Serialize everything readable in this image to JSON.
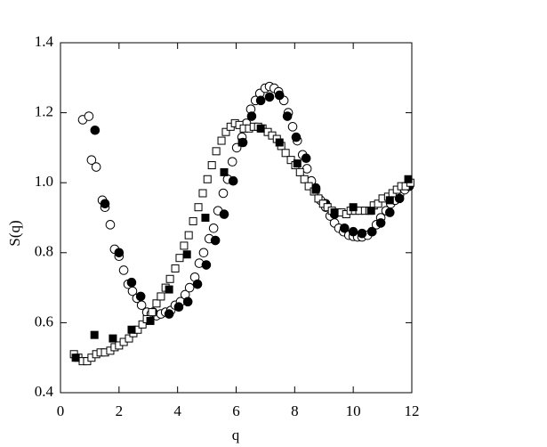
{
  "chart_data": {
    "type": "scatter",
    "x_label": "q",
    "y_label": "S(q)",
    "xlim": [
      0,
      12
    ],
    "ylim": [
      0.4,
      1.4
    ],
    "xticks": [
      0,
      2,
      4,
      6,
      8,
      10,
      12
    ],
    "yticks": [
      0.4,
      0.6,
      0.8,
      {
        "value": 1,
        "label": "1.0"
      },
      1.2,
      1.4
    ],
    "series": [
      {
        "marker": "circle",
        "color": "#000",
        "filled": false,
        "x": [
          0.76,
          0.97,
          1.06,
          1.22,
          1.43,
          1.52,
          1.7,
          1.85,
          2.0,
          2.16,
          2.31,
          2.46,
          2.61,
          2.77,
          2.95,
          3.1,
          3.28,
          3.43,
          3.59,
          3.77,
          3.92,
          4.1,
          4.26,
          4.41,
          4.59,
          4.74,
          4.89,
          5.08,
          5.23,
          5.38,
          5.56,
          5.71,
          5.87,
          6.02,
          6.2,
          6.35,
          6.5,
          6.66,
          6.81,
          6.99,
          7.14,
          7.3,
          7.45,
          7.63,
          7.78,
          7.93,
          8.09,
          8.27,
          8.42,
          8.57,
          8.72,
          8.88,
          9.06,
          9.21,
          9.36,
          9.51,
          9.67,
          9.85,
          10.0,
          10.15,
          10.3,
          10.49,
          10.64,
          10.79,
          10.94,
          11.12,
          11.28,
          11.43,
          11.58,
          11.76,
          11.91
        ],
        "values": [
          1.18,
          1.19,
          1.065,
          1.045,
          0.95,
          0.93,
          0.88,
          0.81,
          0.79,
          0.75,
          0.71,
          0.69,
          0.67,
          0.65,
          0.63,
          0.625,
          0.62,
          0.625,
          0.63,
          0.635,
          0.65,
          0.66,
          0.68,
          0.7,
          0.73,
          0.77,
          0.8,
          0.84,
          0.87,
          0.92,
          0.97,
          1.01,
          1.06,
          1.1,
          1.13,
          1.17,
          1.21,
          1.235,
          1.255,
          1.27,
          1.275,
          1.27,
          1.26,
          1.235,
          1.2,
          1.16,
          1.12,
          1.08,
          1.04,
          1.005,
          0.98,
          0.95,
          0.93,
          0.905,
          0.885,
          0.87,
          0.86,
          0.85,
          0.847,
          0.845,
          0.845,
          0.85,
          0.86,
          0.88,
          0.9,
          0.92,
          0.94,
          0.95,
          0.965,
          0.98,
          0.99
        ]
      },
      {
        "marker": "circle",
        "color": "#000",
        "filled": true,
        "x": [
          1.18,
          1.52,
          2.0,
          2.43,
          2.74,
          3.16,
          3.71,
          4.04,
          4.35,
          4.68,
          4.98,
          5.29,
          5.59,
          5.9,
          6.23,
          6.53,
          6.84,
          7.14,
          7.48,
          7.75,
          8.05,
          8.39,
          8.72,
          9.06,
          9.36,
          9.7,
          10.0,
          10.3,
          10.64,
          10.94,
          11.25,
          11.58,
          11.91
        ],
        "values": [
          1.15,
          0.94,
          0.8,
          0.715,
          0.675,
          0.63,
          0.625,
          0.645,
          0.66,
          0.71,
          0.765,
          0.835,
          0.91,
          1.005,
          1.115,
          1.19,
          1.235,
          1.245,
          1.25,
          1.19,
          1.13,
          1.07,
          0.985,
          0.94,
          0.91,
          0.87,
          0.86,
          0.855,
          0.86,
          0.885,
          0.915,
          0.955,
          0.99
        ]
      },
      {
        "marker": "square",
        "color": "#000",
        "filled": false,
        "x": [
          0.46,
          0.61,
          0.76,
          0.91,
          1.06,
          1.22,
          1.37,
          1.52,
          1.7,
          1.85,
          2.0,
          2.16,
          2.34,
          2.49,
          2.64,
          2.8,
          2.95,
          3.13,
          3.28,
          3.43,
          3.59,
          3.74,
          3.92,
          4.07,
          4.22,
          4.38,
          4.53,
          4.71,
          4.86,
          5.02,
          5.17,
          5.32,
          5.5,
          5.65,
          5.81,
          5.96,
          6.11,
          6.26,
          6.44,
          6.6,
          6.75,
          6.9,
          7.08,
          7.23,
          7.39,
          7.54,
          7.69,
          7.87,
          8.02,
          8.18,
          8.33,
          8.48,
          8.66,
          8.81,
          8.97,
          9.12,
          9.27,
          9.45,
          9.6,
          9.76,
          9.91,
          10.06,
          10.21,
          10.4,
          10.55,
          10.7,
          10.85,
          11.0,
          11.19,
          11.34,
          11.49,
          11.64,
          11.79,
          11.95
        ],
        "values": [
          0.51,
          0.5,
          0.49,
          0.49,
          0.5,
          0.51,
          0.515,
          0.515,
          0.52,
          0.53,
          0.535,
          0.545,
          0.555,
          0.57,
          0.58,
          0.595,
          0.61,
          0.63,
          0.655,
          0.675,
          0.7,
          0.725,
          0.755,
          0.785,
          0.82,
          0.85,
          0.89,
          0.93,
          0.97,
          1.01,
          1.05,
          1.09,
          1.12,
          1.145,
          1.16,
          1.17,
          1.165,
          1.155,
          1.155,
          1.16,
          1.16,
          1.155,
          1.145,
          1.135,
          1.125,
          1.105,
          1.085,
          1.065,
          1.05,
          1.03,
          1.01,
          0.99,
          0.975,
          0.955,
          0.94,
          0.93,
          0.92,
          0.915,
          0.915,
          0.91,
          0.92,
          0.92,
          0.92,
          0.92,
          0.92,
          0.935,
          0.94,
          0.955,
          0.96,
          0.97,
          0.98,
          0.99,
          0.99,
          1.0
        ]
      },
      {
        "marker": "square",
        "color": "#000",
        "filled": true,
        "x": [
          0.52,
          1.16,
          1.79,
          2.43,
          3.07,
          3.71,
          4.32,
          4.95,
          5.59,
          6.2,
          6.84,
          7.48,
          8.09,
          8.72,
          9.36,
          10.0,
          10.61,
          11.25,
          11.88
        ],
        "values": [
          0.5,
          0.565,
          0.555,
          0.58,
          0.605,
          0.695,
          0.795,
          0.9,
          1.03,
          1.115,
          1.155,
          1.115,
          1.055,
          0.98,
          0.915,
          0.93,
          0.92,
          0.95,
          1.01
        ]
      }
    ]
  }
}
